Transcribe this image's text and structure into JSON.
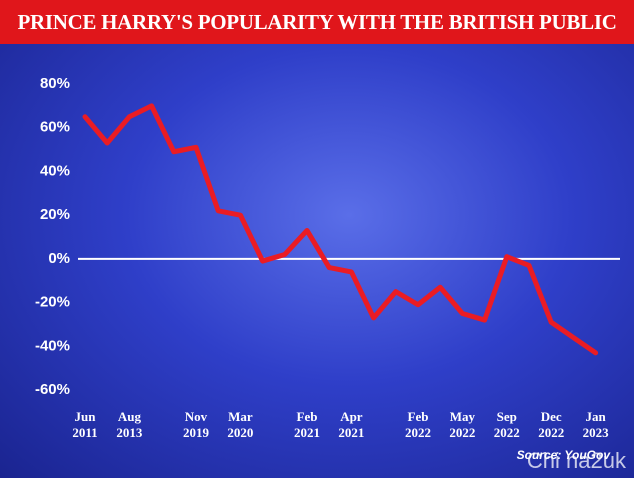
{
  "chart_data": {
    "type": "line",
    "title": "PRINCE HARRY'S POPULARITY WITH THE BRITISH PUBLIC",
    "categories": [
      "Jun 2011",
      null,
      "Aug 2013",
      null,
      null,
      "Nov 2019",
      null,
      "Mar 2020",
      null,
      null,
      "Feb 2021",
      null,
      "Apr 2021",
      null,
      null,
      "Feb 2022",
      null,
      "May 2022",
      null,
      "Sep 2022",
      null,
      "Dec 2022",
      null,
      "Jan 2023"
    ],
    "values": [
      65,
      53,
      65,
      70,
      49,
      51,
      22,
      20,
      -1,
      2,
      13,
      -4,
      -6,
      -27,
      -15,
      -21,
      -13,
      -25,
      -28,
      1,
      -3,
      -29,
      -36,
      -43
    ],
    "color": "#ea1c24",
    "ylim": [
      -60,
      80
    ],
    "yticks": [
      {
        "value": -60,
        "label": "-60%"
      },
      {
        "value": -40,
        "label": "-40%"
      },
      {
        "value": -20,
        "label": "-20%"
      },
      {
        "value": 0,
        "label": "0%"
      },
      {
        "value": 20,
        "label": "20%"
      },
      {
        "value": 40,
        "label": "40%"
      },
      {
        "value": 60,
        "label": "60%"
      },
      {
        "value": 80,
        "label": "80%"
      }
    ],
    "source": "Source: YouGov",
    "watermark": "Chi na2uk"
  }
}
